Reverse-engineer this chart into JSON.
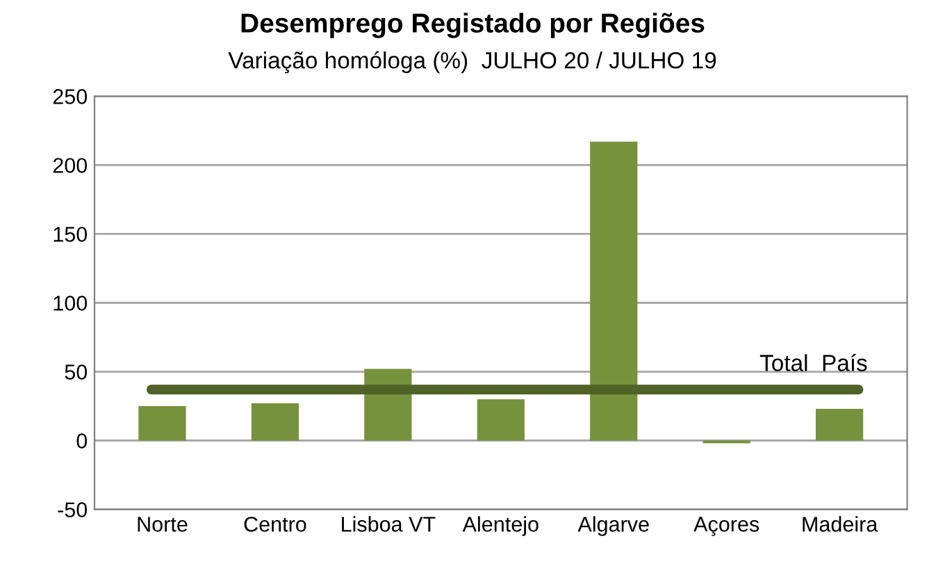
{
  "chart_data": {
    "type": "bar",
    "title": "Desemprego Registado por Regiões",
    "subtitle": "Variação homóloga (%)  JULHO 20 / JULHO 19",
    "categories": [
      "Norte",
      "Centro",
      "Lisboa VT",
      "Alentejo",
      "Algarve",
      "Açores",
      "Madeira"
    ],
    "values": [
      25,
      27,
      52,
      30,
      217,
      -2,
      23
    ],
    "color": "#76923c",
    "ylim": [
      -50,
      250
    ],
    "yticks": [
      -50,
      0,
      50,
      100,
      150,
      200,
      250
    ],
    "grid": "y",
    "ref_lines": [
      {
        "axis": "y",
        "value": 37,
        "label": "Total  País",
        "color": "#4f6228",
        "line_style": "solid"
      }
    ]
  }
}
